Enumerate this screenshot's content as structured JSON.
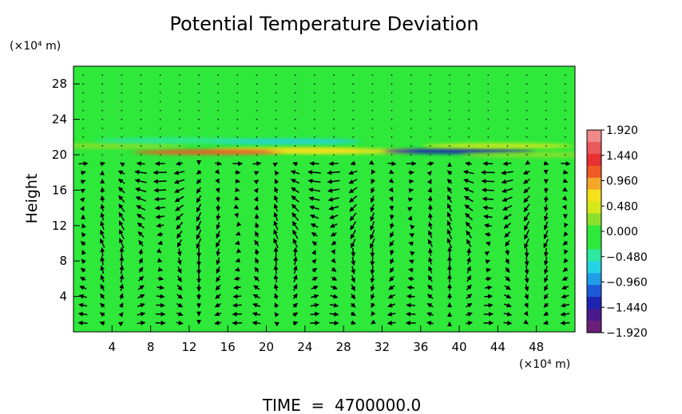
{
  "chart_data": {
    "type": "heatmap",
    "title": "Potential Temperature Deviation",
    "ylabel": "Height",
    "y_unit": "(×10⁴ m)",
    "x_unit": "(×10⁴ m)",
    "xlim": [
      0,
      52
    ],
    "ylim": [
      0,
      30
    ],
    "x_ticks": [
      4,
      8,
      12,
      16,
      20,
      24,
      28,
      32,
      36,
      40,
      44,
      48
    ],
    "x_tick_labels": [
      "4",
      "8",
      "12",
      "16",
      "20",
      "24",
      "28",
      "32",
      "36",
      "40",
      "44",
      "48"
    ],
    "y_ticks": [
      4,
      8,
      12,
      16,
      20,
      24,
      28
    ],
    "y_tick_labels": [
      "4",
      "8",
      "12",
      "16",
      "20",
      "24",
      "28"
    ],
    "colorbar": {
      "range": [
        -1.92,
        1.92
      ],
      "tick_values": [
        1.92,
        1.44,
        0.96,
        0.48,
        0.0,
        -0.48,
        -0.96,
        -1.44,
        -1.92
      ],
      "tick_labels": [
        "1.920",
        "1.440",
        "0.960",
        "0.480",
        "0.000",
        "−0.480",
        "−0.960",
        "−1.440",
        "−1.920"
      ]
    },
    "background_value": 0.0,
    "anomalies": [
      {
        "x": 22,
        "y": 21.5,
        "value": -0.6
      },
      {
        "x": 22,
        "y": 20.5,
        "value": 0.9
      },
      {
        "x": 14,
        "y": 20.3,
        "value": 1.3
      },
      {
        "x": 28,
        "y": 20.4,
        "value": 0.8
      },
      {
        "x": 40,
        "y": 20.4,
        "value": -1.5
      },
      {
        "x": 44,
        "y": 21.0,
        "value": 0.5
      },
      {
        "x": 4,
        "y": 21.0,
        "value": 0.4
      },
      {
        "x": 10,
        "y": 21.6,
        "value": -0.3
      },
      {
        "x": 48,
        "y": 20.0,
        "value": 0.3
      }
    ],
    "vectors_description": "wind arrows over the domain",
    "caption": "TIME  =  4700000.0"
  }
}
